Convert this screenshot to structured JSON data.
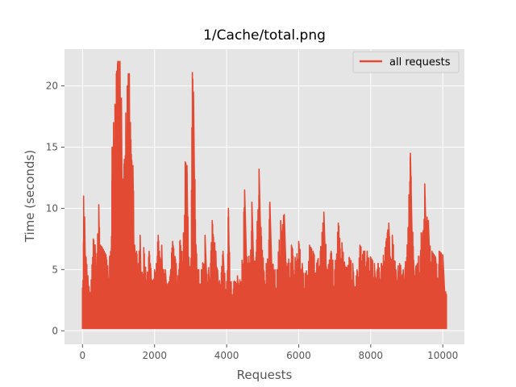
{
  "chart_data": {
    "type": "line",
    "title": "1/Cache/total.png",
    "xlabel": "Requests",
    "ylabel": "Time (seconds)",
    "xlim": [
      -500,
      10600
    ],
    "ylim": [
      -1.1,
      23.0
    ],
    "x_ticks": [
      0,
      2000,
      4000,
      6000,
      8000,
      10000
    ],
    "x_tick_labels": [
      "0",
      "2000",
      "4000",
      "6000",
      "8000",
      "10000"
    ],
    "y_ticks": [
      0,
      5,
      10,
      15,
      20
    ],
    "y_tick_labels": [
      "0",
      "5",
      "10",
      "15",
      "20"
    ],
    "grid": true,
    "legend_position": "top-right",
    "style": "ggplot",
    "colors": {
      "series": "#e24a33",
      "plot_bg": "#e5e5e5",
      "grid": "#ffffff",
      "text": "#555555"
    },
    "series": [
      {
        "name": "all requests",
        "color": "#e24a33",
        "n_points": 10100,
        "x_range": [
          0,
          10100
        ],
        "baseline_min": 0.2,
        "envelope": [
          [
            0,
            3.5
          ],
          [
            30,
            11.0
          ],
          [
            60,
            9.3
          ],
          [
            100,
            6.0
          ],
          [
            150,
            4.5
          ],
          [
            200,
            3.0
          ],
          [
            280,
            6.0
          ],
          [
            300,
            7.5
          ],
          [
            350,
            7.0
          ],
          [
            400,
            6.3
          ],
          [
            450,
            10.3
          ],
          [
            500,
            7.0
          ],
          [
            550,
            6.8
          ],
          [
            600,
            6.5
          ],
          [
            650,
            6.2
          ],
          [
            700,
            5.3
          ],
          [
            750,
            6.0
          ],
          [
            800,
            6.8
          ],
          [
            820,
            15.0
          ],
          [
            860,
            17.0
          ],
          [
            900,
            18.5
          ],
          [
            940,
            21.0
          ],
          [
            980,
            22.0
          ],
          [
            1040,
            22.0
          ],
          [
            1080,
            19.0
          ],
          [
            1120,
            12.0
          ],
          [
            1160,
            14.0
          ],
          [
            1200,
            17.8
          ],
          [
            1240,
            20.0
          ],
          [
            1270,
            21.0
          ],
          [
            1300,
            21.0
          ],
          [
            1330,
            17.0
          ],
          [
            1360,
            14.0
          ],
          [
            1400,
            13.5
          ],
          [
            1450,
            7.0
          ],
          [
            1500,
            6.5
          ],
          [
            1550,
            5.5
          ],
          [
            1600,
            7.8
          ],
          [
            1650,
            4.5
          ],
          [
            1700,
            6.8
          ],
          [
            1750,
            5.2
          ],
          [
            1800,
            4.8
          ],
          [
            1850,
            6.5
          ],
          [
            1900,
            5.0
          ],
          [
            1950,
            4.0
          ],
          [
            2000,
            5.0
          ],
          [
            2050,
            5.5
          ],
          [
            2100,
            7.8
          ],
          [
            2150,
            6.0
          ],
          [
            2200,
            7.0
          ],
          [
            2250,
            5.0
          ],
          [
            2300,
            5.0
          ],
          [
            2400,
            4.0
          ],
          [
            2500,
            7.3
          ],
          [
            2600,
            5.5
          ],
          [
            2650,
            4.5
          ],
          [
            2700,
            7.3
          ],
          [
            2800,
            8.0
          ],
          [
            2850,
            13.8
          ],
          [
            2900,
            13.5
          ],
          [
            2950,
            6.0
          ],
          [
            3000,
            5.0
          ],
          [
            3050,
            21.1
          ],
          [
            3080,
            19.5
          ],
          [
            3150,
            7.0
          ],
          [
            3200,
            5.0
          ],
          [
            3300,
            5.0
          ],
          [
            3400,
            7.8
          ],
          [
            3500,
            5.0
          ],
          [
            3600,
            9.0
          ],
          [
            3700,
            6.5
          ],
          [
            3750,
            5.0
          ],
          [
            3800,
            4.0
          ],
          [
            3900,
            6.5
          ],
          [
            4000,
            4.0
          ],
          [
            4050,
            10.0
          ],
          [
            4100,
            4.0
          ],
          [
            4200,
            4.0
          ],
          [
            4300,
            4.5
          ],
          [
            4400,
            4.0
          ],
          [
            4500,
            11.5
          ],
          [
            4600,
            5.0
          ],
          [
            4700,
            10.5
          ],
          [
            4800,
            5.0
          ],
          [
            4900,
            13.2
          ],
          [
            5000,
            6.0
          ],
          [
            5100,
            5.5
          ],
          [
            5200,
            10.5
          ],
          [
            5300,
            5.0
          ],
          [
            5400,
            5.0
          ],
          [
            5500,
            9.0
          ],
          [
            5600,
            9.5
          ],
          [
            5700,
            5.5
          ],
          [
            5800,
            7.0
          ],
          [
            5900,
            6.0
          ],
          [
            6000,
            7.3
          ],
          [
            6100,
            5.5
          ],
          [
            6200,
            4.5
          ],
          [
            6300,
            7.0
          ],
          [
            6400,
            6.5
          ],
          [
            6500,
            5.5
          ],
          [
            6600,
            6.5
          ],
          [
            6700,
            9.7
          ],
          [
            6800,
            5.0
          ],
          [
            6900,
            6.5
          ],
          [
            7000,
            5.0
          ],
          [
            7100,
            8.8
          ],
          [
            7200,
            7.2
          ],
          [
            7300,
            5.0
          ],
          [
            7400,
            6.0
          ],
          [
            7500,
            5.5
          ],
          [
            7600,
            4.5
          ],
          [
            7700,
            7.0
          ],
          [
            7800,
            6.5
          ],
          [
            7900,
            6.5
          ],
          [
            8000,
            6.0
          ],
          [
            8100,
            5.5
          ],
          [
            8200,
            5.5
          ],
          [
            8300,
            5.5
          ],
          [
            8400,
            6.8
          ],
          [
            8500,
            8.8
          ],
          [
            8600,
            7.8
          ],
          [
            8700,
            5.0
          ],
          [
            8800,
            5.5
          ],
          [
            8900,
            5.0
          ],
          [
            9000,
            6.0
          ],
          [
            9100,
            14.5
          ],
          [
            9200,
            5.0
          ],
          [
            9300,
            5.5
          ],
          [
            9400,
            8.0
          ],
          [
            9500,
            12.0
          ],
          [
            9600,
            9.0
          ],
          [
            9700,
            6.5
          ],
          [
            9800,
            6.0
          ],
          [
            9900,
            6.5
          ],
          [
            10000,
            6.2
          ],
          [
            10100,
            3.0
          ]
        ]
      }
    ]
  }
}
